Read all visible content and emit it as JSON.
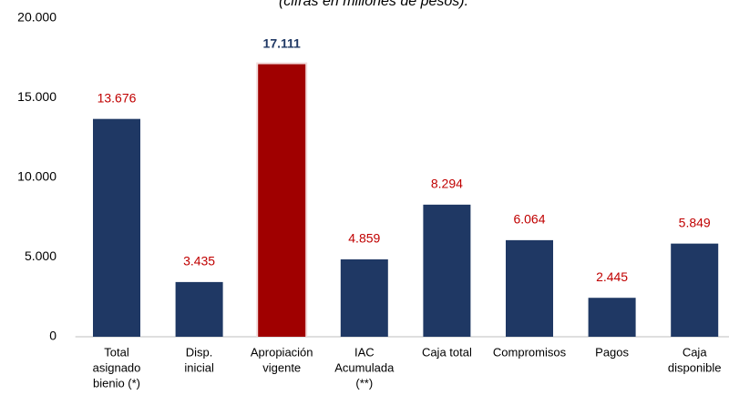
{
  "chart_data": {
    "type": "bar",
    "subtitle": "(cifras en millones de pesos).",
    "categories": [
      [
        "Total",
        "asignado",
        "bienio (*)"
      ],
      [
        "Disp.",
        "inicial"
      ],
      [
        "Apropiación",
        "vigente"
      ],
      [
        "IAC",
        "Acumulada",
        "(**)"
      ],
      [
        "Caja total"
      ],
      [
        "Compromisos"
      ],
      [
        "Pagos"
      ],
      [
        "Caja",
        "disponible"
      ]
    ],
    "values": [
      13676,
      3435,
      17111,
      4859,
      8294,
      6064,
      2445,
      5849
    ],
    "value_labels": [
      "13.676",
      "3.435",
      "17.111",
      "4.859",
      "8.294",
      "6.064",
      "2.445",
      "5.849"
    ],
    "colors": [
      "#1f3864",
      "#1f3864",
      "#a00000",
      "#1f3864",
      "#1f3864",
      "#1f3864",
      "#1f3864",
      "#1f3864"
    ],
    "label_colors": [
      "#c00000",
      "#c00000",
      "#1f3864",
      "#c00000",
      "#c00000",
      "#c00000",
      "#c00000",
      "#c00000"
    ],
    "ylim": [
      0,
      20000
    ],
    "yticks": [
      0,
      {
        "value": 5000,
        "label": "5.000"
      },
      {
        "value": 10000,
        "label": "10.000"
      },
      {
        "value": 15000,
        "label": "15.000"
      },
      {
        "value": 20000,
        "label": "20.000"
      }
    ],
    "grid": false
  }
}
